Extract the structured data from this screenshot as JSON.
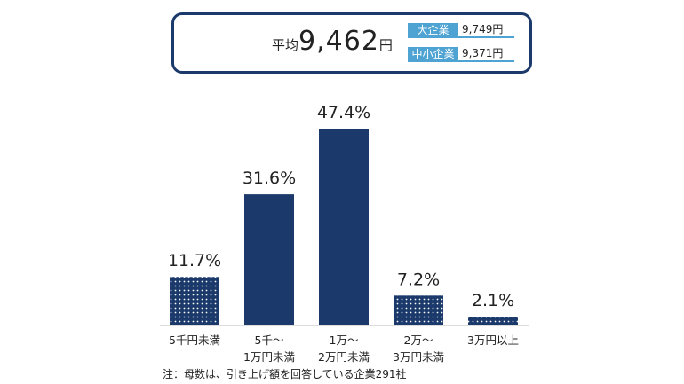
{
  "summary": {
    "avg_label": "平均",
    "avg_value": "9,462",
    "avg_unit": "円",
    "breakdown": [
      {
        "label": "大企業",
        "value": "9,749円"
      },
      {
        "label": "中小企業",
        "value": "9,371円"
      }
    ]
  },
  "chart_data": {
    "type": "bar",
    "categories": [
      "5千円未満",
      "5千～\n1万円未満",
      "1万～\n2万円未満",
      "2万～\n3万円未満",
      "3万円以上"
    ],
    "values": [
      11.7,
      31.6,
      47.4,
      7.2,
      2.1
    ],
    "value_labels": [
      "11.7%",
      "31.6%",
      "47.4%",
      "7.2%",
      "2.1%"
    ],
    "patterned": [
      true,
      false,
      false,
      true,
      true
    ],
    "unit": "%",
    "ylim": [
      0,
      50
    ],
    "colors": {
      "bar": "#1b3a6b",
      "dot": "#ffffff"
    }
  },
  "note": "注：母数は、引き上げ額を回答している企業291社"
}
